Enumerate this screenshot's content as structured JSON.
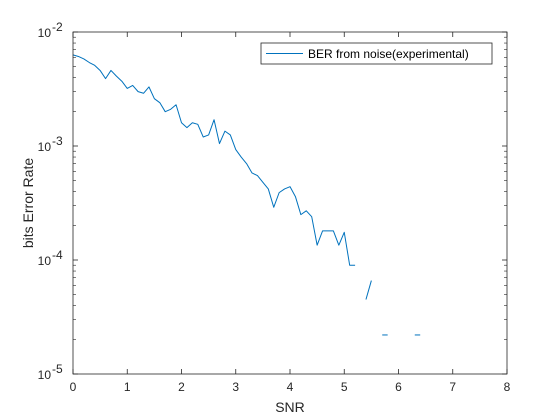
{
  "chart_data": {
    "type": "line",
    "title": "",
    "xlabel": "SNR",
    "ylabel": "bits Error Rate",
    "xlim": [
      0,
      8
    ],
    "ylim": [
      1e-05,
      0.01
    ],
    "yscale": "log",
    "grid": false,
    "box": true,
    "legend_position": "top-right",
    "x_ticks": [
      0,
      1,
      2,
      3,
      4,
      5,
      6,
      7,
      8
    ],
    "y_ticks": [
      {
        "value": 0.01,
        "mantissa": "10",
        "exponent": "-2"
      },
      {
        "value": 0.001,
        "mantissa": "10",
        "exponent": "-3"
      },
      {
        "value": 0.0001,
        "mantissa": "10",
        "exponent": "-4"
      },
      {
        "value": 1e-05,
        "mantissa": "10",
        "exponent": "-5"
      }
    ],
    "colors": {
      "series": "#0072BD",
      "axes": "#262626"
    },
    "series": [
      {
        "name": "BER from noise(experimental)",
        "segments": [
          [
            [
              0.0,
              0.0063
            ],
            [
              0.1,
              0.0061
            ],
            [
              0.2,
              0.0058
            ],
            [
              0.3,
              0.0054
            ],
            [
              0.4,
              0.0051
            ],
            [
              0.5,
              0.0046
            ],
            [
              0.6,
              0.0039
            ],
            [
              0.7,
              0.0046
            ],
            [
              0.8,
              0.0041
            ],
            [
              0.9,
              0.0037
            ],
            [
              1.0,
              0.0032
            ],
            [
              1.1,
              0.0034
            ],
            [
              1.2,
              0.003
            ],
            [
              1.3,
              0.0029
            ],
            [
              1.4,
              0.0033
            ],
            [
              1.5,
              0.0026
            ],
            [
              1.6,
              0.0024
            ],
            [
              1.7,
              0.002
            ],
            [
              1.8,
              0.0021
            ],
            [
              1.9,
              0.0023
            ],
            [
              2.0,
              0.0016
            ],
            [
              2.1,
              0.00145
            ],
            [
              2.2,
              0.0016
            ],
            [
              2.3,
              0.00155
            ],
            [
              2.4,
              0.0012
            ],
            [
              2.5,
              0.00125
            ],
            [
              2.6,
              0.0017
            ],
            [
              2.7,
              0.00105
            ],
            [
              2.8,
              0.00135
            ],
            [
              2.9,
              0.00125
            ],
            [
              3.0,
              0.00093
            ],
            [
              3.1,
              0.0008
            ],
            [
              3.2,
              0.0007
            ],
            [
              3.3,
              0.00058
            ],
            [
              3.4,
              0.00055
            ],
            [
              3.5,
              0.00048
            ],
            [
              3.6,
              0.00042
            ],
            [
              3.7,
              0.00029
            ],
            [
              3.8,
              0.00039
            ],
            [
              3.9,
              0.00042
            ],
            [
              4.0,
              0.00044
            ],
            [
              4.1,
              0.00036
            ],
            [
              4.2,
              0.00025
            ],
            [
              4.3,
              0.00027
            ],
            [
              4.4,
              0.00024
            ],
            [
              4.5,
              0.000135
            ],
            [
              4.6,
              0.00018
            ],
            [
              4.7,
              0.00018
            ],
            [
              4.8,
              0.00018
            ],
            [
              4.9,
              0.000135
            ],
            [
              5.0,
              0.000175
            ],
            [
              5.1,
              9e-05
            ],
            [
              5.2,
              9e-05
            ]
          ],
          [
            [
              5.4,
              4.5e-05
            ],
            [
              5.5,
              6.6e-05
            ]
          ],
          [
            [
              5.7,
              2.2e-05
            ],
            [
              5.8,
              2.2e-05
            ]
          ],
          [
            [
              6.3,
              2.2e-05
            ],
            [
              6.4,
              2.2e-05
            ]
          ]
        ]
      }
    ]
  }
}
